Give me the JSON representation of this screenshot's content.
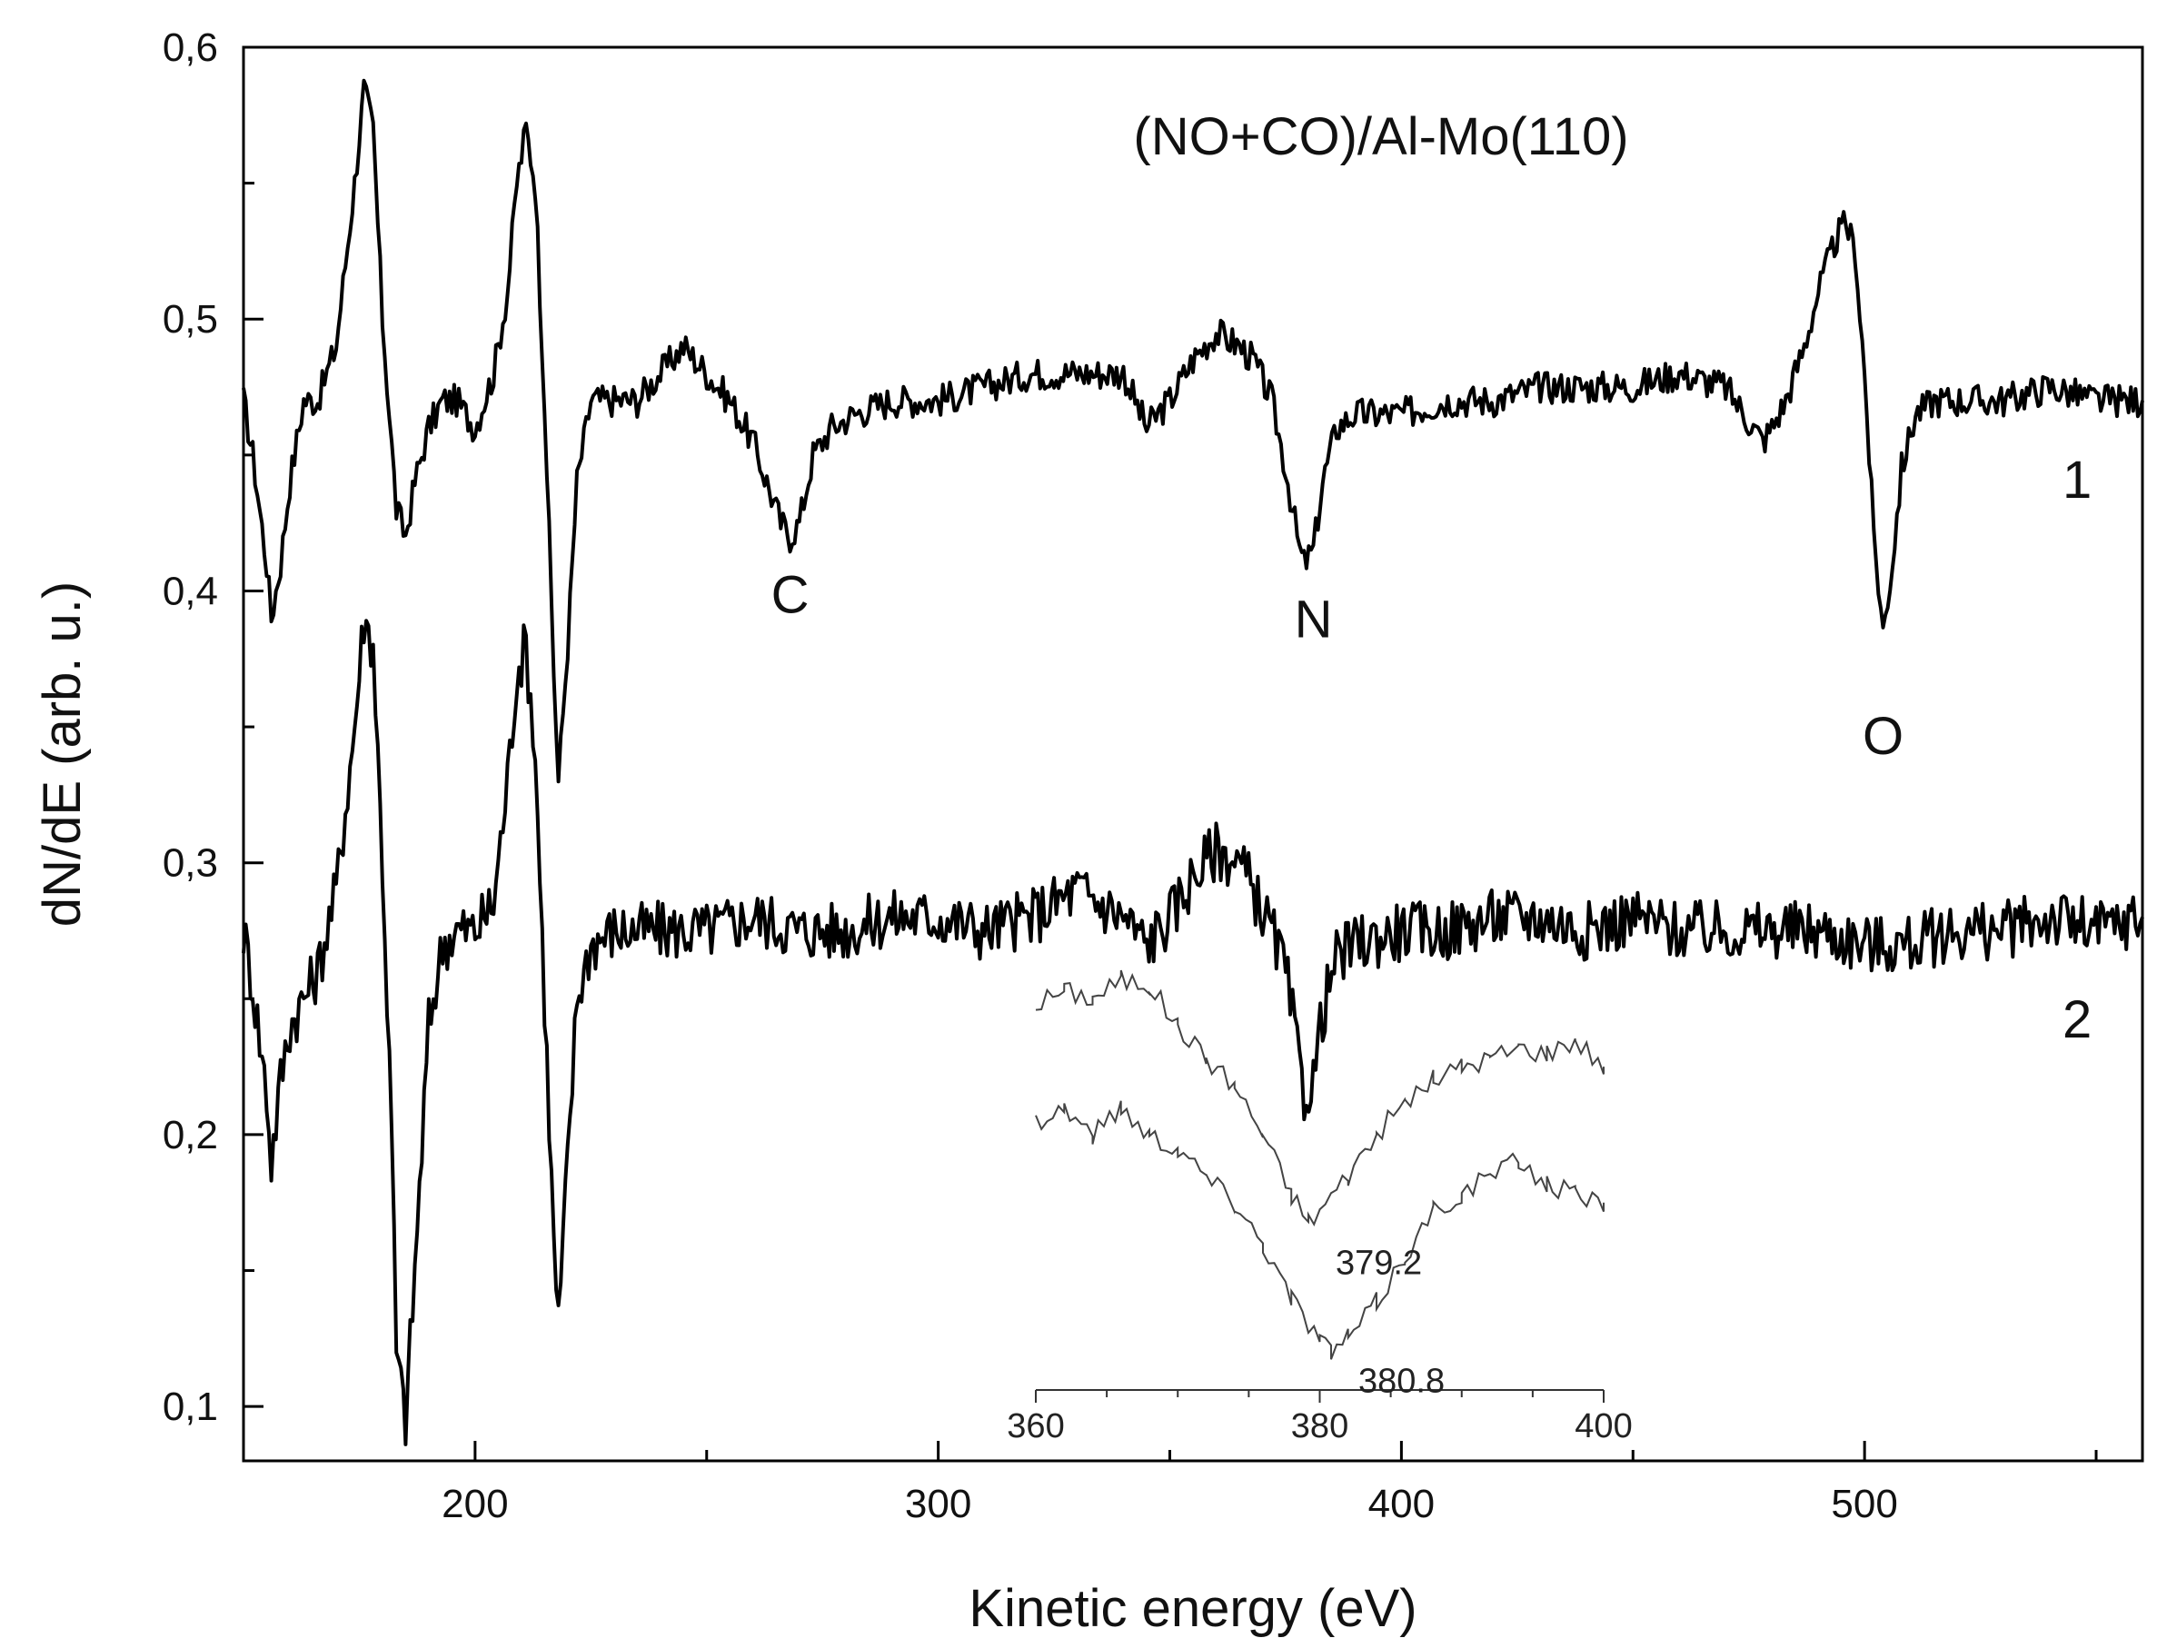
{
  "chart_data": {
    "type": "line",
    "title": "(NO+CO)/Al-Mo(110)",
    "xlabel": "Kinetic energy (eV)",
    "ylabel": "dN/dE (arb. u.)",
    "xlim": [
      150,
      560
    ],
    "ylim": [
      0.08,
      0.6
    ],
    "xticks": [
      200,
      300,
      400,
      500
    ],
    "xtick_labels": [
      "200",
      "300",
      "400",
      "500"
    ],
    "yticks": [
      0.1,
      0.2,
      0.3,
      0.4,
      0.5,
      0.6
    ],
    "ytick_labels": [
      "0,1",
      "0,2",
      "0,3",
      "0,4",
      "0,5",
      "0,6"
    ],
    "grid": false,
    "line_color": "#000000",
    "series": [
      {
        "name": "1",
        "x": [
          150,
          152,
          155,
          156,
          158,
          160,
          163,
          166,
          170,
          174,
          176,
          178,
          180,
          183,
          185,
          187,
          190,
          193,
          196,
          200,
          204,
          207,
          209,
          211,
          213,
          215,
          217,
          218,
          220,
          222,
          225,
          230,
          235,
          240,
          245,
          250,
          255,
          260,
          263,
          266,
          268,
          270,
          273,
          277,
          282,
          290,
          300,
          310,
          320,
          330,
          340,
          345,
          350,
          355,
          360,
          365,
          368,
          372,
          375,
          378,
          379,
          381,
          383,
          386,
          390,
          400,
          410,
          420,
          430,
          440,
          450,
          460,
          470,
          476,
          478,
          480,
          483,
          487,
          490,
          494,
          496,
          498,
          500,
          502,
          504,
          506,
          508,
          511,
          515,
          520,
          530,
          540,
          550,
          560
        ],
        "y": [
          0.47,
          0.45,
          0.41,
          0.39,
          0.41,
          0.44,
          0.47,
          0.47,
          0.49,
          0.55,
          0.584,
          0.57,
          0.5,
          0.43,
          0.42,
          0.44,
          0.46,
          0.47,
          0.47,
          0.46,
          0.48,
          0.51,
          0.55,
          0.57,
          0.55,
          0.47,
          0.37,
          0.33,
          0.38,
          0.44,
          0.47,
          0.47,
          0.47,
          0.48,
          0.49,
          0.48,
          0.47,
          0.455,
          0.44,
          0.425,
          0.42,
          0.425,
          0.45,
          0.46,
          0.465,
          0.47,
          0.47,
          0.475,
          0.48,
          0.48,
          0.48,
          0.46,
          0.47,
          0.485,
          0.495,
          0.49,
          0.485,
          0.47,
          0.445,
          0.415,
          0.41,
          0.415,
          0.44,
          0.46,
          0.465,
          0.465,
          0.47,
          0.47,
          0.475,
          0.475,
          0.475,
          0.48,
          0.475,
          0.46,
          0.455,
          0.46,
          0.47,
          0.49,
          0.51,
          0.53,
          0.535,
          0.525,
          0.48,
          0.42,
          0.385,
          0.41,
          0.445,
          0.465,
          0.47,
          0.47,
          0.47,
          0.475,
          0.47,
          0.47
        ]
      },
      {
        "name": "2",
        "x": [
          150,
          152,
          155,
          156,
          158,
          160,
          163,
          166,
          170,
          174,
          176,
          178,
          180,
          182,
          183,
          185,
          187,
          190,
          193,
          196,
          200,
          204,
          207,
          209,
          211,
          213,
          215,
          217,
          218,
          220,
          222,
          225,
          230,
          240,
          250,
          260,
          270,
          280,
          290,
          300,
          310,
          320,
          330,
          340,
          345,
          350,
          355,
          360,
          365,
          368,
          372,
          375,
          378,
          379,
          381,
          383,
          386,
          390,
          400,
          410,
          420,
          430,
          440,
          450,
          460,
          470,
          480,
          490,
          500,
          510,
          520,
          530,
          540,
          550,
          560
        ],
        "y": [
          0.275,
          0.255,
          0.215,
          0.19,
          0.22,
          0.24,
          0.25,
          0.26,
          0.29,
          0.35,
          0.39,
          0.38,
          0.3,
          0.2,
          0.12,
          0.095,
          0.15,
          0.24,
          0.27,
          0.275,
          0.275,
          0.285,
          0.33,
          0.37,
          0.38,
          0.34,
          0.25,
          0.16,
          0.13,
          0.19,
          0.25,
          0.27,
          0.275,
          0.275,
          0.275,
          0.28,
          0.275,
          0.275,
          0.28,
          0.28,
          0.275,
          0.28,
          0.29,
          0.28,
          0.27,
          0.28,
          0.295,
          0.305,
          0.3,
          0.29,
          0.275,
          0.26,
          0.225,
          0.215,
          0.22,
          0.245,
          0.265,
          0.27,
          0.275,
          0.275,
          0.28,
          0.28,
          0.275,
          0.28,
          0.275,
          0.275,
          0.275,
          0.275,
          0.27,
          0.27,
          0.275,
          0.275,
          0.28,
          0.275,
          0.28
        ]
      }
    ],
    "curve_labels": [
      "1",
      "2"
    ],
    "peak_labels": [
      {
        "text": "C",
        "x": 268,
        "y": 0.392
      },
      {
        "text": "N",
        "x": 381,
        "y": 0.383
      },
      {
        "text": "O",
        "x": 504,
        "y": 0.34
      }
    ],
    "inset": {
      "xlim": [
        360,
        400
      ],
      "xticks": [
        360,
        380,
        400
      ],
      "xtick_labels": [
        "360",
        "380",
        "400"
      ],
      "series": [
        {
          "x": [
            360,
            362,
            364,
            366,
            368,
            370,
            372,
            374,
            376,
            378,
            379.2,
            380,
            382,
            384,
            386,
            388,
            390,
            392,
            394,
            396,
            398,
            400
          ],
          "y": [
            0.248,
            0.253,
            0.25,
            0.257,
            0.255,
            0.24,
            0.228,
            0.218,
            0.2,
            0.178,
            0.168,
            0.172,
            0.185,
            0.2,
            0.212,
            0.22,
            0.225,
            0.228,
            0.232,
            0.23,
            0.235,
            0.225
          ]
        },
        {
          "x": [
            360,
            362,
            364,
            366,
            368,
            370,
            372,
            374,
            376,
            378,
            380,
            380.8,
            382,
            384,
            386,
            388,
            390,
            392,
            394,
            396,
            398,
            400
          ],
          "y": [
            0.205,
            0.21,
            0.2,
            0.21,
            0.2,
            0.195,
            0.185,
            0.175,
            0.16,
            0.14,
            0.125,
            0.12,
            0.125,
            0.138,
            0.155,
            0.172,
            0.178,
            0.185,
            0.19,
            0.182,
            0.178,
            0.175
          ]
        }
      ],
      "annotations": [
        {
          "text": "379.2",
          "x": 379.2,
          "y": 0.168
        },
        {
          "text": "380.8",
          "x": 380.8,
          "y": 0.12
        }
      ]
    }
  }
}
